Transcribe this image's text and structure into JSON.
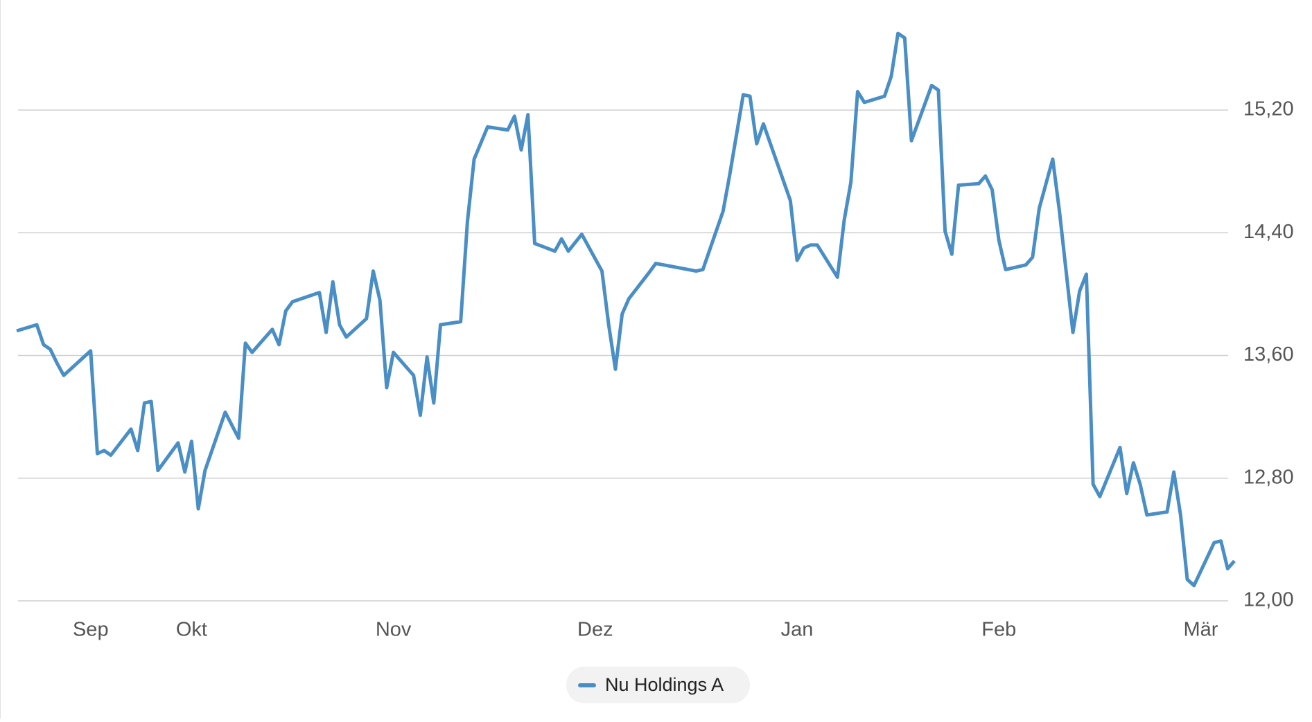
{
  "chart_data": {
    "type": "line",
    "xticks": [
      {
        "value": 11,
        "label": "Sep"
      },
      {
        "value": 26,
        "label": "Okt"
      },
      {
        "value": 56,
        "label": "Nov"
      },
      {
        "value": 86,
        "label": "Dez"
      },
      {
        "value": 116,
        "label": "Jan"
      },
      {
        "value": 146,
        "label": "Feb"
      },
      {
        "value": 176,
        "label": "Mär"
      }
    ],
    "xlim": [
      0,
      181
    ],
    "x": [
      0,
      3,
      4,
      5,
      6,
      7,
      11,
      12,
      13,
      14,
      17,
      18,
      19,
      20,
      21,
      24,
      25,
      26,
      27,
      28,
      31,
      33,
      34,
      35,
      38,
      39,
      40,
      41,
      45,
      46,
      47,
      48,
      49,
      52,
      53,
      54,
      55,
      56,
      59,
      60,
      61,
      62,
      63,
      66,
      67,
      68,
      70,
      73,
      74,
      75,
      76,
      77,
      80,
      81,
      82,
      84,
      87,
      88,
      89,
      90,
      91,
      94,
      95,
      101,
      102,
      105,
      106,
      108,
      109,
      110,
      111,
      115,
      116,
      117,
      118,
      119,
      122,
      123,
      124,
      125,
      126,
      129,
      130,
      131,
      132,
      133,
      136,
      137,
      138,
      139,
      140,
      143,
      144,
      145,
      146,
      147,
      150,
      151,
      152,
      154,
      155,
      157,
      158,
      159,
      160,
      161,
      164,
      165,
      166,
      167,
      168,
      171,
      172,
      173,
      174,
      175,
      178,
      179,
      180,
      181
    ],
    "series": [
      {
        "name": "Nu Holdings A",
        "color": "#4a8ec6",
        "values": [
          13.76,
          13.8,
          13.67,
          13.64,
          13.55,
          13.47,
          13.63,
          12.96,
          12.98,
          12.95,
          13.12,
          12.98,
          13.29,
          13.3,
          12.85,
          13.03,
          12.84,
          13.04,
          12.6,
          12.85,
          13.23,
          13.06,
          13.68,
          13.62,
          13.77,
          13.67,
          13.89,
          13.95,
          14.01,
          13.75,
          14.08,
          13.8,
          13.72,
          13.84,
          14.15,
          13.96,
          13.39,
          13.62,
          13.47,
          13.21,
          13.59,
          13.29,
          13.8,
          13.82,
          14.47,
          14.88,
          15.09,
          15.07,
          15.16,
          14.94,
          15.17,
          14.33,
          14.28,
          14.36,
          14.28,
          14.39,
          14.15,
          13.8,
          13.51,
          13.87,
          13.97,
          14.14,
          14.2,
          14.15,
          14.16,
          14.54,
          14.78,
          15.3,
          15.29,
          14.98,
          15.11,
          14.61,
          14.22,
          14.3,
          14.32,
          14.32,
          14.11,
          14.48,
          14.73,
          15.32,
          15.25,
          15.29,
          15.42,
          15.7,
          15.67,
          15.0,
          15.36,
          15.33,
          14.41,
          14.26,
          14.71,
          14.72,
          14.77,
          14.68,
          14.35,
          14.16,
          14.19,
          14.24,
          14.56,
          14.88,
          14.54,
          13.75,
          14.02,
          14.13,
          12.76,
          12.68,
          13.0,
          12.7,
          12.9,
          12.76,
          12.56,
          12.58,
          12.84,
          12.56,
          12.14,
          12.1,
          12.38,
          12.39,
          12.21,
          12.26
        ]
      }
    ],
    "ylim": [
      12,
      15.8
    ],
    "yticks": [
      {
        "value": 12,
        "label": "12,00"
      },
      {
        "value": 12.8,
        "label": "12,80"
      },
      {
        "value": 13.6,
        "label": "13,60"
      },
      {
        "value": 14.4,
        "label": "14,40"
      },
      {
        "value": 15.2,
        "label": "15,20"
      }
    ],
    "grid": true
  }
}
